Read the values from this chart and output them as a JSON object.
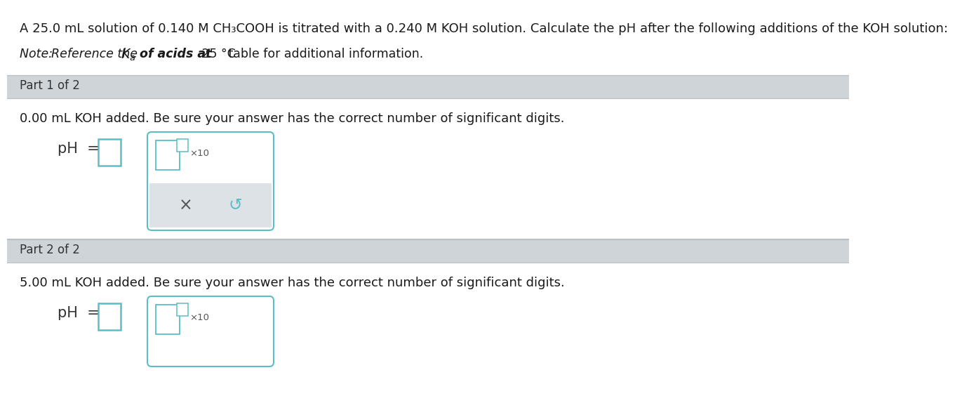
{
  "background_color": "#ffffff",
  "header_line1": "A 25.0 mL solution of 0.140 M CH₃COOH is titrated with a 0.240 M KOH solution. Calculate the pH after the following additions of the KOH solution:",
  "note_italic_part": "Note: ",
  "note_ref": "Reference the ",
  "note_Ka": "$K_a$",
  "note_bold_italic": " of acids at",
  "note_temp": " 25 °C",
  "note_tail": " table for additional information.",
  "part1_label": "Part 1 of 2",
  "part1_bar_color": "#ced4d8",
  "part1_question": "0.00 mL KOH added. Be sure your answer has the correct number of significant digits.",
  "part2_label": "Part 2 of 2",
  "part2_bar_color": "#ced4d8",
  "part2_question": "5.00 mL KOH added. Be sure your answer has the correct number of significant digits.",
  "teal_color": "#5bbec6",
  "panel_fill": "#ffffff",
  "button_area_color": "#dce2e5",
  "x_symbol": "×",
  "refresh_symbol": "↺",
  "section_border": "#c0c8cc",
  "text_dark": "#1a1a1a",
  "text_gray": "#444444",
  "font_size_header": 13.0,
  "font_size_note": 12.5,
  "font_size_part": 12.0,
  "font_size_question": 13.0,
  "font_size_ph": 15.0,
  "font_size_buttons": 17.0,
  "font_size_x10": 9.5
}
